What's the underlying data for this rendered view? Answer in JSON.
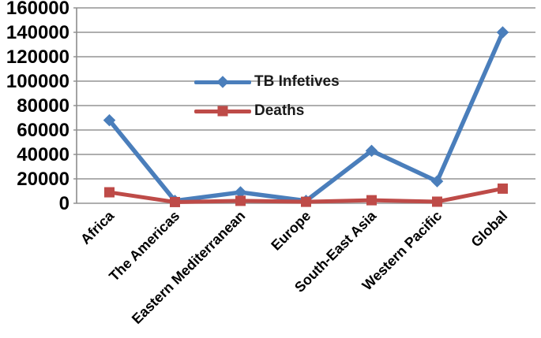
{
  "chart_data": {
    "type": "line",
    "title": "",
    "xlabel": "",
    "ylabel": "",
    "categories": [
      "Africa",
      "The Americas",
      "Eastern Mediterranean",
      "Europe",
      "South-East Asia",
      "Western Pacific",
      "Global"
    ],
    "series": [
      {
        "name": "TB Infetives",
        "color": "#4A7EBB",
        "marker": "diamond",
        "values": [
          68000,
          2000,
          9000,
          2000,
          43000,
          18000,
          140000
        ]
      },
      {
        "name": "Deaths",
        "color": "#BE4B48",
        "marker": "square",
        "values": [
          9000,
          1000,
          2000,
          1200,
          2500,
          1300,
          12000
        ]
      }
    ],
    "ylim": [
      0,
      160000
    ],
    "yticks": [
      0,
      20000,
      40000,
      60000,
      80000,
      100000,
      120000,
      140000,
      160000
    ],
    "ytick_labels": [
      "0",
      "20000",
      "40000",
      "60000",
      "80000",
      "100000",
      "120000",
      "140000",
      "160000"
    ],
    "grid": true,
    "gridline_color": "#949494",
    "axis_line_color": "#8c8c8c",
    "axis_text_color": "#000000",
    "x_label_rotation_deg": -45,
    "legend_position": "inside-top-center"
  }
}
